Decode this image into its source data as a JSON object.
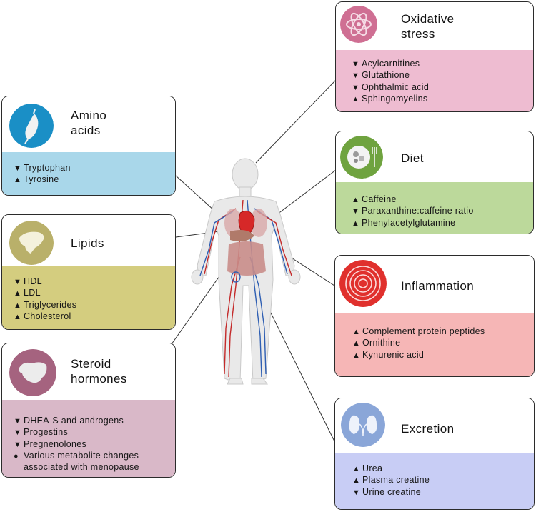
{
  "legend_markers": {
    "down": "▼",
    "up": "▲",
    "change": "●"
  },
  "colors": {
    "amino": "#a9d7ea",
    "lipids": "#d4cd7f",
    "steroid": "#d9b8c8",
    "oxidative": "#eebcd1",
    "diet": "#bcd99b",
    "inflammation": "#f6b6b6",
    "excretion": "#c8cdf5"
  },
  "cards": {
    "amino": {
      "title_line1": "Amino",
      "title_line2": "acids",
      "icon": "muscle-icon",
      "items": [
        {
          "marker": "down",
          "text": "Tryptophan"
        },
        {
          "marker": "up",
          "text": "Tyrosine"
        }
      ]
    },
    "lipids": {
      "title_line1": "Lipids",
      "icon": "liver-icon",
      "items": [
        {
          "marker": "down",
          "text": "HDL"
        },
        {
          "marker": "up",
          "text": "LDL"
        },
        {
          "marker": "up",
          "text": "Triglycerides"
        },
        {
          "marker": "up",
          "text": "Cholesterol"
        }
      ]
    },
    "steroid": {
      "title_line1": "Steroid",
      "title_line2": "hormones",
      "icon": "adrenal-gland-icon",
      "items": [
        {
          "marker": "down",
          "text": "DHEA-S and androgens"
        },
        {
          "marker": "down",
          "text": "Progestins"
        },
        {
          "marker": "down",
          "text": "Pregnenolones"
        },
        {
          "marker": "change",
          "text": "Various metabolite changes",
          "text2": "associated with menopause"
        }
      ]
    },
    "oxidative": {
      "title_line1": "Oxidative",
      "title_line2": "stress",
      "icon": "atom-icon",
      "items": [
        {
          "marker": "down",
          "text": "Acylcarnitines"
        },
        {
          "marker": "down",
          "text": "Glutathione"
        },
        {
          "marker": "down",
          "text": "Ophthalmic acid"
        },
        {
          "marker": "up",
          "text": "Sphingomyelins"
        }
      ]
    },
    "diet": {
      "title_line1": "Diet",
      "icon": "plate-icon",
      "items": [
        {
          "marker": "up",
          "text": "Caffeine"
        },
        {
          "marker": "down",
          "text": "Paraxanthine:caffeine ratio"
        },
        {
          "marker": "up",
          "text": "Phenylacetylglutamine"
        }
      ]
    },
    "inflammation": {
      "title_line1": "Inflammation",
      "icon": "target-icon",
      "items": [
        {
          "marker": "up",
          "text": "Complement protein peptides"
        },
        {
          "marker": "up",
          "text": "Ornithine"
        },
        {
          "marker": "up",
          "text": "Kynurenic acid"
        }
      ]
    },
    "excretion": {
      "title_line1": "Excretion",
      "icon": "kidney-icon",
      "items": [
        {
          "marker": "up",
          "text": "Urea"
        },
        {
          "marker": "up",
          "text": "Plasma creatine"
        },
        {
          "marker": "down",
          "text": "Urine creatine"
        }
      ]
    }
  }
}
